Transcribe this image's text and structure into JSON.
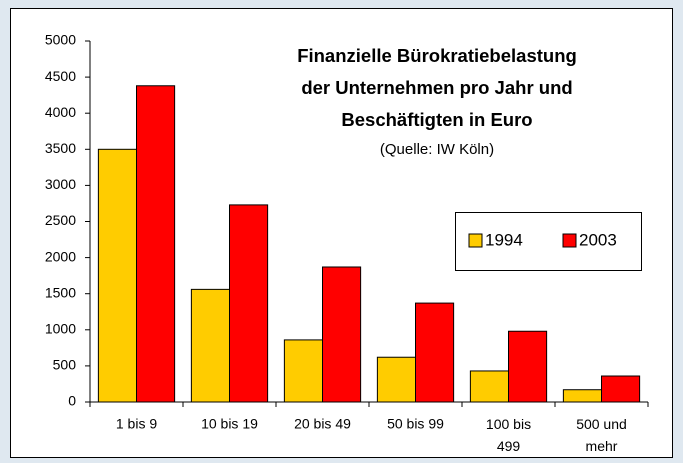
{
  "chart_data": {
    "type": "bar",
    "title": "Finanzielle Bürokratiebelastung der Unternehmen pro Jahr und Beschäftigten in Euro",
    "subtitle": "(Quelle: IW Köln)",
    "categories": [
      "1 bis 9",
      "10 bis 19",
      "20 bis 49",
      "50 bis 99",
      "100 bis 499",
      "500 und mehr"
    ],
    "series": [
      {
        "name": "1994",
        "color": "#ffcc00",
        "values": [
          3500,
          1560,
          860,
          620,
          430,
          170
        ]
      },
      {
        "name": "2003",
        "color": "#ff0000",
        "values": [
          4380,
          2730,
          1870,
          1370,
          980,
          360
        ]
      }
    ],
    "ylim": [
      0,
      5000
    ],
    "yticks": [
      0,
      500,
      1000,
      1500,
      2000,
      2500,
      3000,
      3500,
      4000,
      4500,
      5000
    ],
    "grid": false,
    "legend": "right"
  }
}
